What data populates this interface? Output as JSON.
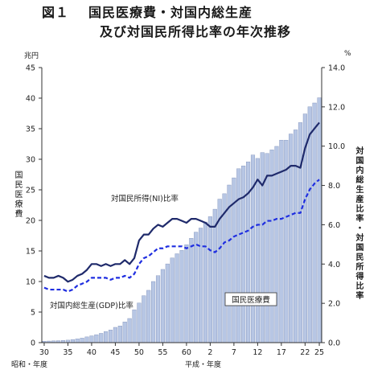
{
  "figure": {
    "number": "図１",
    "title_line1": "国民医療費・対国内総生産",
    "title_line2": "及び対国民所得比率の年次推移"
  },
  "axes": {
    "left_unit": "兆円",
    "right_unit": "%",
    "left_label": "国民医療費",
    "right_label": "対国内総生産比率・対国民所得比率",
    "left_ticks": [
      "0",
      "5",
      "10",
      "15",
      "20",
      "25",
      "30",
      "35",
      "40",
      "45"
    ],
    "right_ticks": [
      "0.0",
      "2.0",
      "4.0",
      "6.0",
      "8.0",
      "10.0",
      "12.0",
      "14.0"
    ],
    "x_ticks": [
      "30",
      "35",
      "40",
      "45",
      "50",
      "55",
      "60",
      "2",
      "7",
      "12",
      "17",
      "22",
      "25"
    ],
    "era_showa": "昭和・年度",
    "era_heisei": "平成・年度"
  },
  "chart_data": {
    "type": "bar",
    "title": "国民医療費・対国内総生産 及び対国民所得比率の年次推移",
    "categories": [
      "30",
      "31",
      "32",
      "33",
      "34",
      "35",
      "36",
      "37",
      "38",
      "39",
      "40",
      "41",
      "42",
      "43",
      "44",
      "45",
      "46",
      "47",
      "48",
      "49",
      "50",
      "51",
      "52",
      "53",
      "54",
      "55",
      "56",
      "57",
      "58",
      "59",
      "60",
      "61",
      "62",
      "63",
      "元",
      "2",
      "3",
      "4",
      "5",
      "6",
      "7",
      "8",
      "9",
      "10",
      "11",
      "12",
      "13",
      "14",
      "15",
      "16",
      "17",
      "18",
      "19",
      "20",
      "21",
      "22",
      "23",
      "24",
      "25"
    ],
    "ylim_left": [
      0,
      45
    ],
    "ylim_right": [
      0,
      14
    ],
    "grid": false,
    "series": [
      {
        "name": "国民医療費",
        "axis": "left",
        "type": "bar",
        "values": [
          0.24,
          0.26,
          0.29,
          0.32,
          0.37,
          0.41,
          0.51,
          0.61,
          0.74,
          0.94,
          1.11,
          1.3,
          1.52,
          1.81,
          2.08,
          2.5,
          2.73,
          3.39,
          3.95,
          5.38,
          6.48,
          7.68,
          8.56,
          10.0,
          10.95,
          11.98,
          12.88,
          13.86,
          14.54,
          15.09,
          16.02,
          17.07,
          18.08,
          18.75,
          19.73,
          20.61,
          21.83,
          23.48,
          24.36,
          25.79,
          26.96,
          28.45,
          28.91,
          29.58,
          30.7,
          30.14,
          31.1,
          30.95,
          31.54,
          32.11,
          33.13,
          33.12,
          34.14,
          34.81,
          36.0,
          37.42,
          38.59,
          39.21,
          40.06
        ]
      },
      {
        "name": "対国民所得(NI)比率",
        "axis": "right",
        "type": "line",
        "style": "solid",
        "values": [
          3.4,
          3.3,
          3.3,
          3.4,
          3.3,
          3.1,
          3.2,
          3.4,
          3.5,
          3.7,
          4.0,
          4.0,
          3.9,
          4.0,
          3.9,
          4.0,
          4.0,
          4.2,
          4.0,
          4.3,
          5.2,
          5.5,
          5.5,
          5.8,
          6.0,
          5.9,
          6.1,
          6.3,
          6.3,
          6.2,
          6.1,
          6.3,
          6.3,
          6.2,
          6.1,
          5.9,
          5.9,
          6.3,
          6.6,
          6.9,
          7.1,
          7.3,
          7.4,
          7.6,
          7.9,
          8.3,
          8.0,
          8.5,
          8.5,
          8.6,
          8.7,
          8.8,
          9.0,
          9.0,
          8.9,
          9.9,
          10.6,
          10.9,
          11.2
        ]
      },
      {
        "name": "対国内総生産(GDP)比率",
        "axis": "right",
        "type": "line",
        "style": "dashed",
        "values": [
          2.8,
          2.7,
          2.7,
          2.7,
          2.7,
          2.6,
          2.7,
          2.9,
          3.0,
          3.1,
          3.3,
          3.3,
          3.3,
          3.3,
          3.2,
          3.3,
          3.3,
          3.4,
          3.3,
          3.5,
          4.0,
          4.3,
          4.4,
          4.6,
          4.8,
          4.8,
          4.9,
          4.9,
          4.9,
          4.9,
          4.8,
          4.9,
          5.0,
          4.9,
          4.9,
          4.7,
          4.6,
          4.8,
          5.1,
          5.2,
          5.4,
          5.5,
          5.6,
          5.7,
          5.9,
          6.0,
          6.0,
          6.2,
          6.2,
          6.3,
          6.3,
          6.4,
          6.5,
          6.6,
          6.6,
          7.3,
          7.8,
          8.1,
          8.3
        ]
      }
    ],
    "annotations": [
      "対国民所得(NI)比率",
      "対国内総生産(GDP)比率",
      "国民医療費"
    ]
  }
}
